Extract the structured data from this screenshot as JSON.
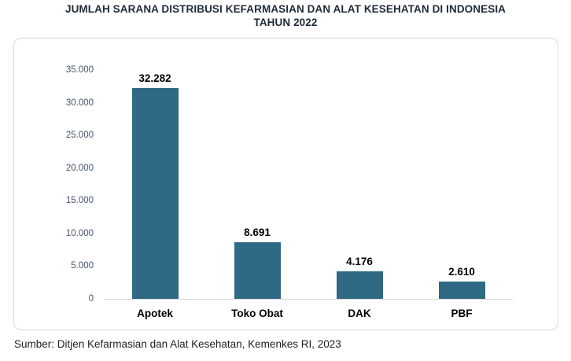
{
  "title": {
    "line1": "JUMLAH SARANA DISTRIBUSI KEFARMASIAN DAN ALAT KESEHATAN DI INDONESIA",
    "line2": "TAHUN 2022"
  },
  "source": "Sumber: Ditjen Kefarmasian dan Alat Kesehatan, Kemenkes RI, 2023",
  "colors": {
    "bar": "#2F6983",
    "axis_line": "#D9D9D9",
    "panel_border": "#D9D9D9",
    "tick_label": "#44546A",
    "title_text": "#1F2B38",
    "data_label": "#000000"
  },
  "chart_data": {
    "type": "bar",
    "title": "JUMLAH SARANA DISTRIBUSI KEFARMASIAN DAN ALAT KESEHATAN DI INDONESIA TAHUN 2022",
    "categories": [
      "Apotek",
      "Toko Obat",
      "DAK",
      "PBF"
    ],
    "values": [
      32282,
      8691,
      4176,
      2610
    ],
    "value_labels": [
      "32.282",
      "8.691",
      "4.176",
      "2.610"
    ],
    "xlabel": "",
    "ylabel": "",
    "ylim": [
      0,
      35000
    ],
    "y_ticks": [
      0,
      5000,
      10000,
      15000,
      20000,
      25000,
      30000,
      35000
    ],
    "y_tick_labels": [
      "0",
      "5.000",
      "10.000",
      "15.000",
      "20.000",
      "25.000",
      "30.000",
      "35.000"
    ],
    "grid": false,
    "legend": false
  }
}
